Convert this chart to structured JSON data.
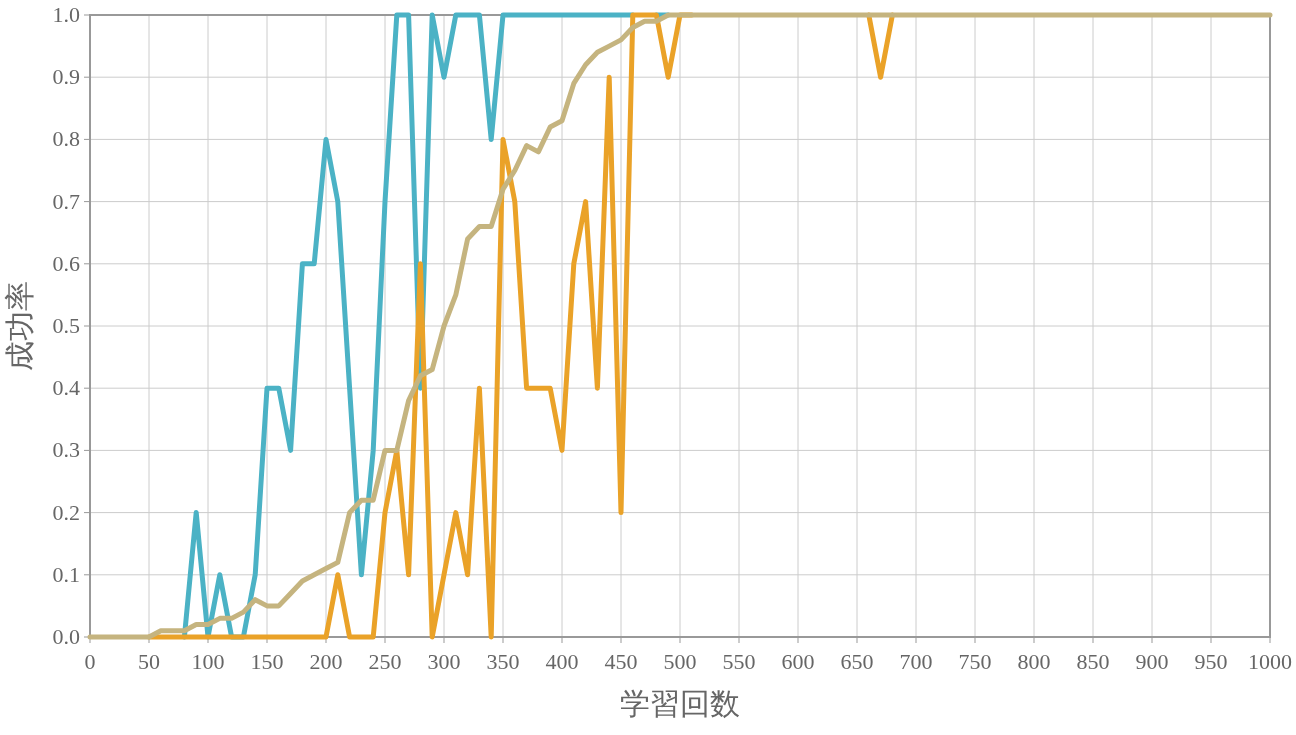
{
  "chart_data": {
    "type": "line",
    "xlabel": "学習回数",
    "ylabel": "成功率",
    "grid": true,
    "marker": "none",
    "line_style": "solid",
    "xlim": [
      0,
      1000
    ],
    "ylim": [
      0,
      1
    ],
    "xticks": [
      0,
      50,
      100,
      150,
      200,
      250,
      300,
      350,
      400,
      450,
      500,
      550,
      600,
      650,
      700,
      750,
      800,
      850,
      900,
      950,
      1000
    ],
    "yticks": [
      {
        "value": 0,
        "label": "0.0"
      },
      0.1,
      0.2,
      0.3,
      0.4,
      0.5,
      0.6,
      0.7,
      0.8,
      0.9,
      {
        "value": 1,
        "label": "1.0"
      }
    ],
    "x": [
      0,
      10,
      20,
      30,
      40,
      50,
      60,
      70,
      80,
      90,
      100,
      110,
      120,
      130,
      140,
      150,
      160,
      170,
      180,
      190,
      200,
      210,
      220,
      230,
      240,
      250,
      260,
      270,
      280,
      290,
      300,
      310,
      320,
      330,
      340,
      350,
      360,
      370,
      380,
      390,
      400,
      410,
      420,
      430,
      440,
      450,
      460,
      470,
      480,
      490,
      500,
      510,
      520,
      530,
      540,
      550,
      560,
      570,
      580,
      590,
      600,
      610,
      620,
      630,
      640,
      650,
      660,
      670,
      680,
      690,
      700,
      710,
      720,
      730,
      740,
      750,
      760,
      770,
      780,
      790,
      800,
      810,
      820,
      830,
      840,
      850,
      860,
      870,
      880,
      890,
      900,
      910,
      920,
      930,
      940,
      950,
      960,
      970,
      980,
      990,
      1000
    ],
    "series": [
      {
        "color": "#4bb2c5",
        "values": [
          null,
          null,
          null,
          null,
          null,
          null,
          null,
          null,
          0,
          0.2,
          0,
          0.1,
          0,
          0,
          0.1,
          0.4,
          0.4,
          0.3,
          0.6,
          0.6,
          0.8,
          0.7,
          0.4,
          0.1,
          0.3,
          0.7,
          1,
          1,
          0.4,
          1,
          0.9,
          1,
          1,
          1,
          0.8,
          1,
          1,
          1,
          1,
          1,
          1,
          1,
          1,
          1,
          1,
          1,
          1,
          null,
          1,
          1,
          null,
          null,
          null,
          null,
          null,
          null,
          null,
          null,
          null,
          null,
          null,
          null,
          null,
          null,
          null,
          null,
          null,
          null,
          null,
          null,
          null,
          null,
          null,
          null,
          null,
          null,
          null,
          null,
          null,
          null,
          null,
          null,
          null,
          null,
          null,
          null,
          null,
          null,
          null,
          null,
          null,
          null,
          null,
          null,
          null,
          null,
          null,
          null,
          null,
          null,
          null
        ]
      },
      {
        "color": "#eaa228",
        "values": [
          null,
          null,
          null,
          null,
          null,
          0,
          0,
          0,
          0,
          0,
          0,
          0,
          0,
          0,
          0,
          0,
          0,
          0,
          0,
          0,
          0,
          0.1,
          0,
          0,
          0,
          0.2,
          0.3,
          0.1,
          0.6,
          0,
          0.1,
          0.2,
          0.1,
          0.4,
          0,
          0.8,
          0.7,
          0.4,
          0.4,
          0.4,
          0.3,
          0.6,
          0.7,
          0.4,
          0.9,
          0.2,
          1,
          1,
          1,
          0.9,
          1,
          1,
          null,
          null,
          null,
          null,
          null,
          null,
          null,
          null,
          null,
          null,
          null,
          null,
          null,
          null,
          1,
          0.9,
          1,
          null,
          null,
          null,
          null,
          null,
          null,
          null,
          null,
          null,
          null,
          null,
          null,
          null,
          null,
          null,
          null,
          null,
          null,
          null,
          null,
          null,
          null,
          null,
          null,
          null,
          null,
          null,
          null,
          null,
          null,
          null,
          null
        ]
      },
      {
        "color": "#c5b47f",
        "values": [
          0,
          0,
          0,
          0,
          0,
          0,
          0.01,
          0.01,
          0.01,
          0.02,
          0.02,
          0.03,
          0.03,
          0.04,
          0.06,
          0.05,
          0.05,
          0.07,
          0.09,
          0.1,
          0.11,
          0.12,
          0.2,
          0.22,
          0.22,
          0.3,
          0.3,
          0.38,
          0.42,
          0.43,
          0.5,
          0.55,
          0.64,
          0.66,
          0.66,
          0.72,
          0.75,
          0.79,
          0.78,
          0.82,
          0.83,
          0.89,
          0.92,
          0.94,
          0.95,
          0.96,
          0.98,
          0.99,
          0.99,
          1,
          1,
          1,
          1,
          1,
          1,
          1,
          1,
          1,
          1,
          1,
          1,
          1,
          1,
          1,
          1,
          1,
          1,
          1,
          1,
          1,
          1,
          1,
          1,
          1,
          1,
          1,
          1,
          1,
          1,
          1,
          1,
          1,
          1,
          1,
          1,
          1,
          1,
          1,
          1,
          1,
          1,
          1,
          1,
          1,
          1,
          1,
          1,
          1,
          1,
          1,
          1
        ]
      }
    ]
  }
}
